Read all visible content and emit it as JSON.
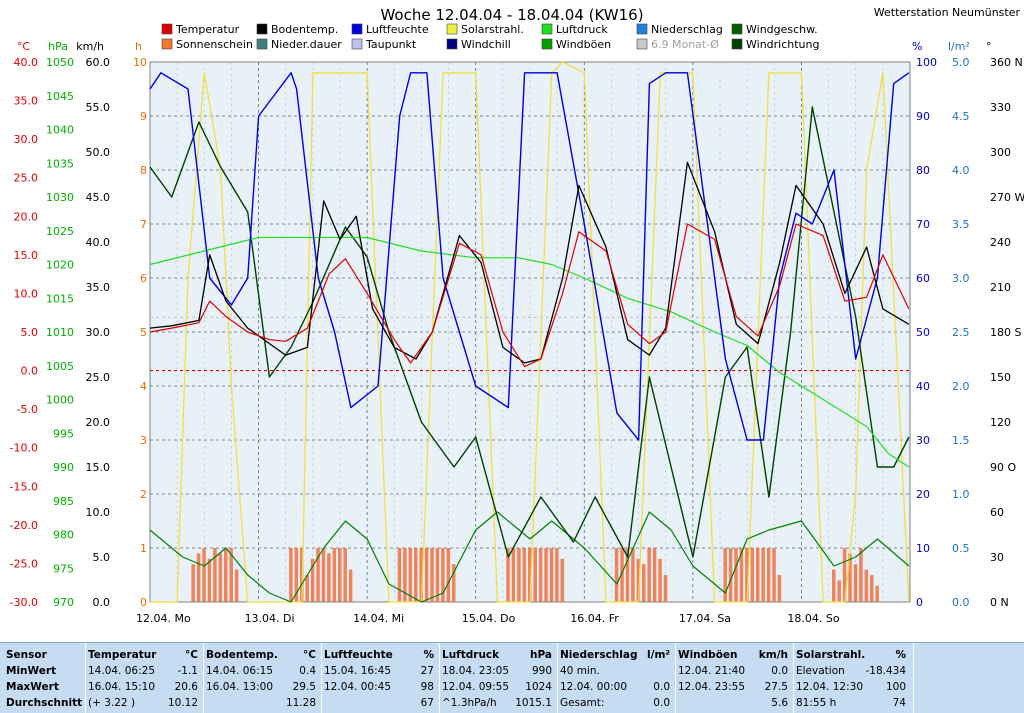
{
  "title": "Woche 12.04.04 - 18.04.04 (KW16)",
  "station": "Wetterstation Neumünster",
  "legend": [
    {
      "label": "Temperatur",
      "color": "#e00000"
    },
    {
      "label": "Sonnenschein",
      "color": "#f07830"
    },
    {
      "label": "Bodentemp.",
      "color": "#000000"
    },
    {
      "label": "Nieder.dauer",
      "color": "#408080"
    },
    {
      "label": "Luftfeuchte",
      "color": "#0000e0"
    },
    {
      "label": "Taupunkt",
      "color": "#c0c0f0"
    },
    {
      "label": "Solarstrahl.",
      "color": "#f0f040"
    },
    {
      "label": "Windchill",
      "color": "#000080"
    },
    {
      "label": "Luftdruck",
      "color": "#20e020"
    },
    {
      "label": "Windböen",
      "color": "#00a000"
    },
    {
      "label": "Niederschlag",
      "color": "#2080e0"
    },
    {
      "label": "6.9 Monat-Ø",
      "color": "#c8c8c8"
    },
    {
      "label": "Windgeschw.",
      "color": "#006000"
    },
    {
      "label": "Windrichtung",
      "color": "#004000"
    }
  ],
  "axes": {
    "temp": {
      "unit": "°C",
      "ticks": [
        "40.0",
        "35.0",
        "30.0",
        "25.0",
        "20.0",
        "15.0",
        "10.0",
        "5.0",
        "0.0",
        "-5.0",
        "-10.0",
        "-15.0",
        "-20.0",
        "-25.0",
        "-30.0"
      ],
      "color": "#e00000"
    },
    "pressure": {
      "unit": "hPa",
      "ticks": [
        "1050",
        "1045",
        "1040",
        "1035",
        "1030",
        "1025",
        "1020",
        "1015",
        "1010",
        "1005",
        "1000",
        "995",
        "990",
        "985",
        "980",
        "975",
        "970"
      ],
      "color": "#00b000"
    },
    "wind": {
      "unit": "km/h",
      "ticks": [
        "60.0",
        "55.0",
        "50.0",
        "45.0",
        "40.0",
        "35.0",
        "30.0",
        "25.0",
        "20.0",
        "15.0",
        "10.0",
        "5.0",
        "0.0"
      ],
      "color": "#000000"
    },
    "hours": {
      "unit": "h",
      "ticks": [
        "10",
        "9",
        "8",
        "7",
        "6",
        "5",
        "4",
        "3",
        "2",
        "1",
        "0"
      ],
      "color": "#e07000"
    },
    "humidity": {
      "unit": "%",
      "ticks": [
        "100",
        "90",
        "80",
        "70",
        "60",
        "50",
        "40",
        "30",
        "20",
        "10",
        "0"
      ],
      "color": "#0000c0"
    },
    "rain": {
      "unit": "l/m²",
      "ticks": [
        "5.0",
        "4.5",
        "4.0",
        "3.5",
        "3.0",
        "2.5",
        "2.0",
        "1.5",
        "1.0",
        "0.5",
        "0.0"
      ],
      "color": "#2070c0"
    },
    "direction": {
      "unit": "°",
      "ticks": [
        "360 N",
        "330",
        "300",
        "270 W",
        "240",
        "210",
        "180 S",
        "150",
        "120",
        "90 O",
        "60",
        "30",
        "0 N"
      ],
      "color": "#000000"
    },
    "days": [
      "12.04.  Mo",
      "13.04.  Di",
      "14.04.  Mi",
      "15.04.  Do",
      "16.04.  Fr",
      "17.04.  Sa",
      "18.04.  So"
    ]
  },
  "chart_data": {
    "type": "line",
    "title": "Woche 12.04.04 - 18.04.04 (KW16)",
    "x_unit": "day (0 = 12.04. 00:00)",
    "series": [
      {
        "name": "Temperatur",
        "unit": "°C",
        "x": [
          0,
          0.2,
          0.45,
          0.55,
          0.7,
          0.9,
          1.1,
          1.25,
          1.45,
          1.65,
          1.8,
          2.0,
          2.25,
          2.4,
          2.6,
          2.85,
          3.05,
          3.25,
          3.45,
          3.6,
          3.8,
          3.95,
          4.2,
          4.4,
          4.6,
          4.75,
          4.95,
          5.2,
          5.4,
          5.6,
          5.8,
          5.95,
          6.2,
          6.4,
          6.6,
          6.75,
          6.99
        ],
        "values": [
          5.0,
          5.5,
          6.2,
          9.0,
          7.0,
          5.0,
          4.0,
          3.8,
          5.5,
          12.5,
          14.5,
          10.0,
          4.0,
          1.0,
          5.0,
          16.5,
          15.0,
          5.0,
          0.5,
          1.5,
          10.0,
          18.0,
          15.5,
          6.0,
          3.5,
          5.0,
          19.0,
          17.0,
          7.0,
          4.5,
          11.0,
          19.0,
          17.5,
          9.0,
          9.5,
          15.0,
          8.0
        ]
      },
      {
        "name": "Bodentemp.",
        "unit": "°C",
        "x": [
          0,
          0.2,
          0.45,
          0.55,
          0.7,
          0.9,
          1.1,
          1.25,
          1.45,
          1.6,
          1.75,
          1.9,
          2.05,
          2.25,
          2.45,
          2.6,
          2.85,
          3.05,
          3.25,
          3.45,
          3.6,
          3.8,
          3.95,
          4.2,
          4.4,
          4.6,
          4.75,
          4.95,
          5.2,
          5.4,
          5.6,
          5.8,
          5.95,
          6.2,
          6.4,
          6.6,
          6.75,
          6.99
        ],
        "values": [
          5.5,
          5.8,
          6.5,
          15.0,
          9.0,
          5.5,
          3.5,
          2.0,
          3.0,
          22.0,
          17.0,
          20.0,
          8.0,
          3.0,
          1.5,
          5.0,
          17.5,
          14.0,
          3.0,
          1.0,
          1.5,
          12.0,
          24.0,
          16.0,
          4.0,
          2.0,
          5.5,
          27.0,
          18.0,
          6.0,
          3.5,
          14.0,
          24.0,
          19.0,
          10.0,
          16.0,
          8.0,
          6.0
        ]
      },
      {
        "name": "Luftfeuchte",
        "unit": "%",
        "x": [
          0,
          0.1,
          0.35,
          0.55,
          0.75,
          0.9,
          1.0,
          1.3,
          1.35,
          1.55,
          1.7,
          1.85,
          2.1,
          2.3,
          2.4,
          2.55,
          2.7,
          3.0,
          3.3,
          3.45,
          3.6,
          3.75,
          4.0,
          4.3,
          4.5,
          4.6,
          4.75,
          4.95,
          5.3,
          5.5,
          5.65,
          5.8,
          5.95,
          6.1,
          6.3,
          6.5,
          6.7,
          6.85,
          6.99
        ],
        "values": [
          95,
          98,
          95,
          60,
          55,
          60,
          90,
          98,
          95,
          60,
          50,
          36,
          40,
          90,
          98,
          98,
          60,
          40,
          36,
          98,
          98,
          98,
          70,
          35,
          30,
          96,
          98,
          98,
          45,
          30,
          30,
          60,
          72,
          70,
          80,
          45,
          60,
          96,
          98
        ]
      },
      {
        "name": "Luftdruck",
        "unit": "hPa",
        "x": [
          0,
          0.5,
          1.0,
          1.5,
          2.0,
          2.5,
          3.0,
          3.4,
          3.7,
          4.0,
          4.4,
          4.8,
          5.2,
          5.5,
          5.8,
          6.1,
          6.4,
          6.6,
          6.8,
          6.99
        ],
        "values": [
          1020,
          1022,
          1024,
          1024,
          1024,
          1022,
          1021,
          1021,
          1020,
          1018,
          1015,
          1013,
          1010,
          1008,
          1004,
          1001,
          998,
          996,
          992,
          990
        ]
      },
      {
        "name": "Solarstrahl.",
        "unit": "%",
        "x": [
          0,
          0.25,
          0.35,
          0.5,
          0.65,
          0.75,
          0.9,
          1.1,
          1.25,
          1.4,
          1.5,
          1.7,
          1.8,
          2.0,
          2.2,
          2.4,
          2.5,
          2.7,
          2.8,
          3.0,
          3.2,
          3.4,
          3.5,
          3.7,
          3.8,
          4.0,
          4.2,
          4.4,
          4.5,
          4.7,
          4.8,
          5.0,
          5.2,
          5.4,
          5.5,
          5.7,
          5.8,
          6.0,
          6.2,
          6.4,
          6.5,
          6.6,
          6.75,
          6.99
        ],
        "values": [
          0,
          0,
          60,
          98,
          80,
          40,
          0,
          0,
          0,
          0,
          98,
          98,
          98,
          98,
          0,
          0,
          0,
          98,
          98,
          98,
          0,
          0,
          0,
          98,
          100,
          98,
          0,
          0,
          0,
          98,
          98,
          98,
          0,
          0,
          0,
          98,
          98,
          98,
          0,
          0,
          20,
          80,
          98,
          0
        ]
      },
      {
        "name": "Windgeschw.",
        "unit": "km/h",
        "x": [
          0,
          0.3,
          0.5,
          0.7,
          0.9,
          1.1,
          1.3,
          1.6,
          1.8,
          2.0,
          2.2,
          2.5,
          2.7,
          3.0,
          3.2,
          3.5,
          3.7,
          4.0,
          4.3,
          4.6,
          4.8,
          5.0,
          5.3,
          5.5,
          5.7,
          6.0,
          6.3,
          6.5,
          6.7,
          6.99
        ],
        "values": [
          8,
          5,
          4,
          6,
          3,
          1,
          0,
          6,
          9,
          7,
          2,
          0,
          1,
          8,
          10,
          7,
          9,
          6,
          2,
          10,
          8,
          4,
          1,
          7,
          8,
          9,
          4,
          5,
          7,
          4
        ]
      },
      {
        "name": "Windrichtung",
        "unit": "°",
        "x": [
          0,
          0.2,
          0.45,
          0.65,
          0.9,
          1.1,
          1.3,
          1.5,
          1.8,
          2.0,
          2.2,
          2.5,
          2.8,
          3.0,
          3.3,
          3.6,
          3.9,
          4.1,
          4.4,
          4.6,
          4.8,
          5.0,
          5.3,
          5.5,
          5.7,
          5.9,
          6.1,
          6.3,
          6.5,
          6.7,
          6.85,
          6.99
        ],
        "values": [
          290,
          270,
          320,
          290,
          260,
          150,
          170,
          200,
          250,
          230,
          180,
          120,
          90,
          110,
          30,
          70,
          40,
          70,
          30,
          150,
          90,
          30,
          150,
          170,
          70,
          180,
          330,
          260,
          190,
          90,
          90,
          110
        ]
      }
    ],
    "reference_lines": [
      {
        "name": "0 °C",
        "axis": "temp",
        "value": 0,
        "color": "#e00000"
      },
      {
        "name": "6.9 Monat-Ø",
        "axis": "temp",
        "value": 6.9,
        "color": "#c8c8c8"
      }
    ],
    "bars": {
      "name": "Sonnenschein",
      "unit": "h",
      "x": [
        0.4,
        0.45,
        0.5,
        0.55,
        0.6,
        0.65,
        0.7,
        0.75,
        0.8,
        1.3,
        1.35,
        1.4,
        1.45,
        1.5,
        1.55,
        1.6,
        1.65,
        1.7,
        1.75,
        1.8,
        1.85,
        2.3,
        2.35,
        2.4,
        2.45,
        2.5,
        2.55,
        2.6,
        2.65,
        2.7,
        2.75,
        2.8,
        3.3,
        3.35,
        3.4,
        3.45,
        3.5,
        3.55,
        3.6,
        3.65,
        3.7,
        3.75,
        3.8,
        4.3,
        4.35,
        4.4,
        4.45,
        4.5,
        4.55,
        4.6,
        4.65,
        4.7,
        4.75,
        5.3,
        5.35,
        5.4,
        5.45,
        5.5,
        5.55,
        5.6,
        5.65,
        5.7,
        5.75,
        5.8,
        6.3,
        6.35,
        6.4,
        6.45,
        6.5,
        6.55,
        6.6,
        6.65,
        6.7
      ],
      "values": [
        0.7,
        0.9,
        1.0,
        0.8,
        1.0,
        0.9,
        1.0,
        1.0,
        0.6,
        1.0,
        1.0,
        1.0,
        0.5,
        0.8,
        1.0,
        1.0,
        0.9,
        1.0,
        1.0,
        1.0,
        0.6,
        1.0,
        1.0,
        1.0,
        1.0,
        1.0,
        1.0,
        1.0,
        1.0,
        1.0,
        1.0,
        0.7,
        1.0,
        1.0,
        1.0,
        1.0,
        1.0,
        1.0,
        1.0,
        1.0,
        1.0,
        1.0,
        0.8,
        1.0,
        1.0,
        1.0,
        1.0,
        0.8,
        0.7,
        1.0,
        1.0,
        0.8,
        0.5,
        1.0,
        1.0,
        1.0,
        1.0,
        1.0,
        1.0,
        1.0,
        1.0,
        1.0,
        1.0,
        0.5,
        0.6,
        0.4,
        1.0,
        0.9,
        0.7,
        1.0,
        0.6,
        0.5,
        0.3
      ]
    }
  },
  "table": {
    "rows": [
      "Sensor",
      "MinWert",
      "MaxWert",
      "Durchschnitt"
    ],
    "columns": [
      {
        "name": "Temperatur",
        "unit": "°C",
        "cells": [
          [
            "14.04.  06:25",
            "-1.1"
          ],
          [
            "16.04.  15:10",
            "20.6"
          ],
          [
            "(+ 3.22 )",
            "10.12"
          ]
        ]
      },
      {
        "name": "Bodentemp.",
        "unit": "°C",
        "cells": [
          [
            "14.04.  06:15",
            "0.4"
          ],
          [
            "16.04.  13:00",
            "29.5"
          ],
          [
            "",
            "11.28"
          ]
        ]
      },
      {
        "name": "Luftfeuchte",
        "unit": "%",
        "cells": [
          [
            "15.04.  16:45",
            "27"
          ],
          [
            "12.04.  00:45",
            "98"
          ],
          [
            "",
            "67"
          ]
        ]
      },
      {
        "name": "Luftdruck",
        "unit": "hPa",
        "cells": [
          [
            "18.04.  23:05",
            "990"
          ],
          [
            "12.04.  09:55",
            "1024"
          ],
          [
            "^1.3hPa/h",
            "1015.1"
          ]
        ]
      },
      {
        "name": "Niederschlag",
        "unit": "l/m²",
        "cells": [
          [
            "40 min.",
            ""
          ],
          [
            "12.04.  00:00",
            "0.0"
          ],
          [
            "Gesamt:",
            "0.0"
          ]
        ]
      },
      {
        "name": "Windböen",
        "unit": "km/h",
        "cells": [
          [
            "12.04.  21:40",
            "0.0"
          ],
          [
            "12.04.  23:55",
            "27.5"
          ],
          [
            "",
            "5.6"
          ]
        ]
      },
      {
        "name": "Solarstrahl.",
        "unit": "%",
        "cells": [
          [
            "Elevation",
            "-18.434"
          ],
          [
            "12.04.  12:30",
            "100"
          ],
          [
            "81:55 h",
            "74"
          ]
        ]
      }
    ]
  }
}
